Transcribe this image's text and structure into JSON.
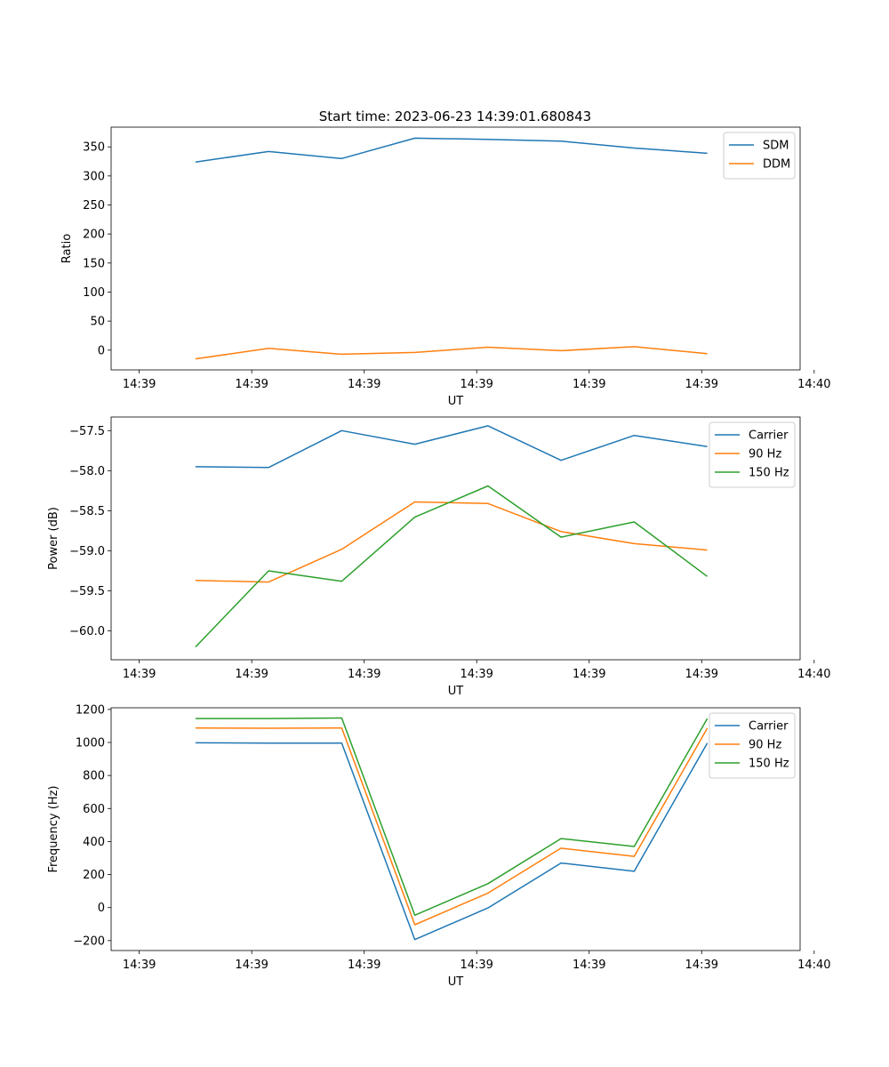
{
  "figure": {
    "title": "Start time: 2023-06-23 14:39:01.680843"
  },
  "colors": {
    "blue": "#1f77b4",
    "orange": "#ff7f0e",
    "green": "#2ca02c"
  },
  "chart_data": [
    {
      "type": "line",
      "title": "Start time: 2023-06-23 14:39:01.680843",
      "xlabel": "UT",
      "ylabel": "Ratio",
      "x_tick_labels": [
        "14:39",
        "14:39",
        "14:39",
        "14:39",
        "14:39",
        "14:39",
        "14:40"
      ],
      "y_ticks": [
        0,
        50,
        100,
        150,
        200,
        250,
        300,
        350
      ],
      "y_tick_labels": [
        "0",
        "50",
        "100",
        "150",
        "200",
        "250",
        "300",
        "350"
      ],
      "ylim": [
        -34,
        384
      ],
      "legend": "top-right",
      "grid": false,
      "x": [
        0.5,
        1.15,
        1.8,
        2.45,
        3.1,
        3.75,
        4.4,
        5.05
      ],
      "series": [
        {
          "name": "SDM",
          "color": "#1f77b4",
          "values": [
            324,
            342,
            330,
            365,
            363,
            360,
            348,
            339
          ]
        },
        {
          "name": "DDM",
          "color": "#ff7f0e",
          "values": [
            -15,
            3,
            -7,
            -4,
            5,
            -1,
            6,
            -6
          ]
        }
      ]
    },
    {
      "type": "line",
      "xlabel": "UT",
      "ylabel": "Power (dB)",
      "x_tick_labels": [
        "14:39",
        "14:39",
        "14:39",
        "14:39",
        "14:39",
        "14:39",
        "14:40"
      ],
      "y_ticks": [
        -60.0,
        -59.5,
        -59.0,
        -58.5,
        -58.0,
        -57.5
      ],
      "y_tick_labels": [
        "−60.0",
        "−59.5",
        "−59.0",
        "−58.5",
        "−58.0",
        "−57.5"
      ],
      "ylim": [
        -60.36,
        -57.33
      ],
      "legend": "top-right",
      "grid": false,
      "x": [
        0.5,
        1.15,
        1.8,
        2.45,
        3.1,
        3.75,
        4.4,
        5.05
      ],
      "series": [
        {
          "name": "Carrier",
          "color": "#1f77b4",
          "values": [
            -57.95,
            -57.96,
            -57.5,
            -57.67,
            -57.44,
            -57.87,
            -57.56,
            -57.7
          ]
        },
        {
          "name": "90 Hz",
          "color": "#ff7f0e",
          "values": [
            -59.37,
            -59.39,
            -58.98,
            -58.39,
            -58.41,
            -58.76,
            -58.91,
            -58.99
          ]
        },
        {
          "name": "150 Hz",
          "color": "#2ca02c",
          "values": [
            -60.2,
            -59.25,
            -59.38,
            -58.58,
            -58.19,
            -58.83,
            -58.64,
            -59.32
          ]
        }
      ]
    },
    {
      "type": "line",
      "xlabel": "UT",
      "ylabel": "Frequency (Hz)",
      "x_tick_labels": [
        "14:39",
        "14:39",
        "14:39",
        "14:39",
        "14:39",
        "14:39",
        "14:40"
      ],
      "y_ticks": [
        -200,
        0,
        200,
        400,
        600,
        800,
        1000,
        1200
      ],
      "y_tick_labels": [
        "−200",
        "0",
        "200",
        "400",
        "600",
        "800",
        "1000",
        "1200"
      ],
      "ylim": [
        -260,
        1210
      ],
      "legend": "top-right",
      "grid": false,
      "x": [
        0.5,
        1.15,
        1.8,
        2.45,
        3.1,
        3.75,
        4.4,
        5.05
      ],
      "series": [
        {
          "name": "Carrier",
          "color": "#1f77b4",
          "values": [
            998,
            996,
            996,
            -194,
            -2,
            270,
            220,
            996
          ]
        },
        {
          "name": "90 Hz",
          "color": "#ff7f0e",
          "values": [
            1088,
            1086,
            1087,
            -104,
            88,
            360,
            310,
            1086
          ]
        },
        {
          "name": "150 Hz",
          "color": "#2ca02c",
          "values": [
            1145,
            1145,
            1148,
            -46,
            145,
            418,
            370,
            1145
          ]
        }
      ]
    }
  ]
}
